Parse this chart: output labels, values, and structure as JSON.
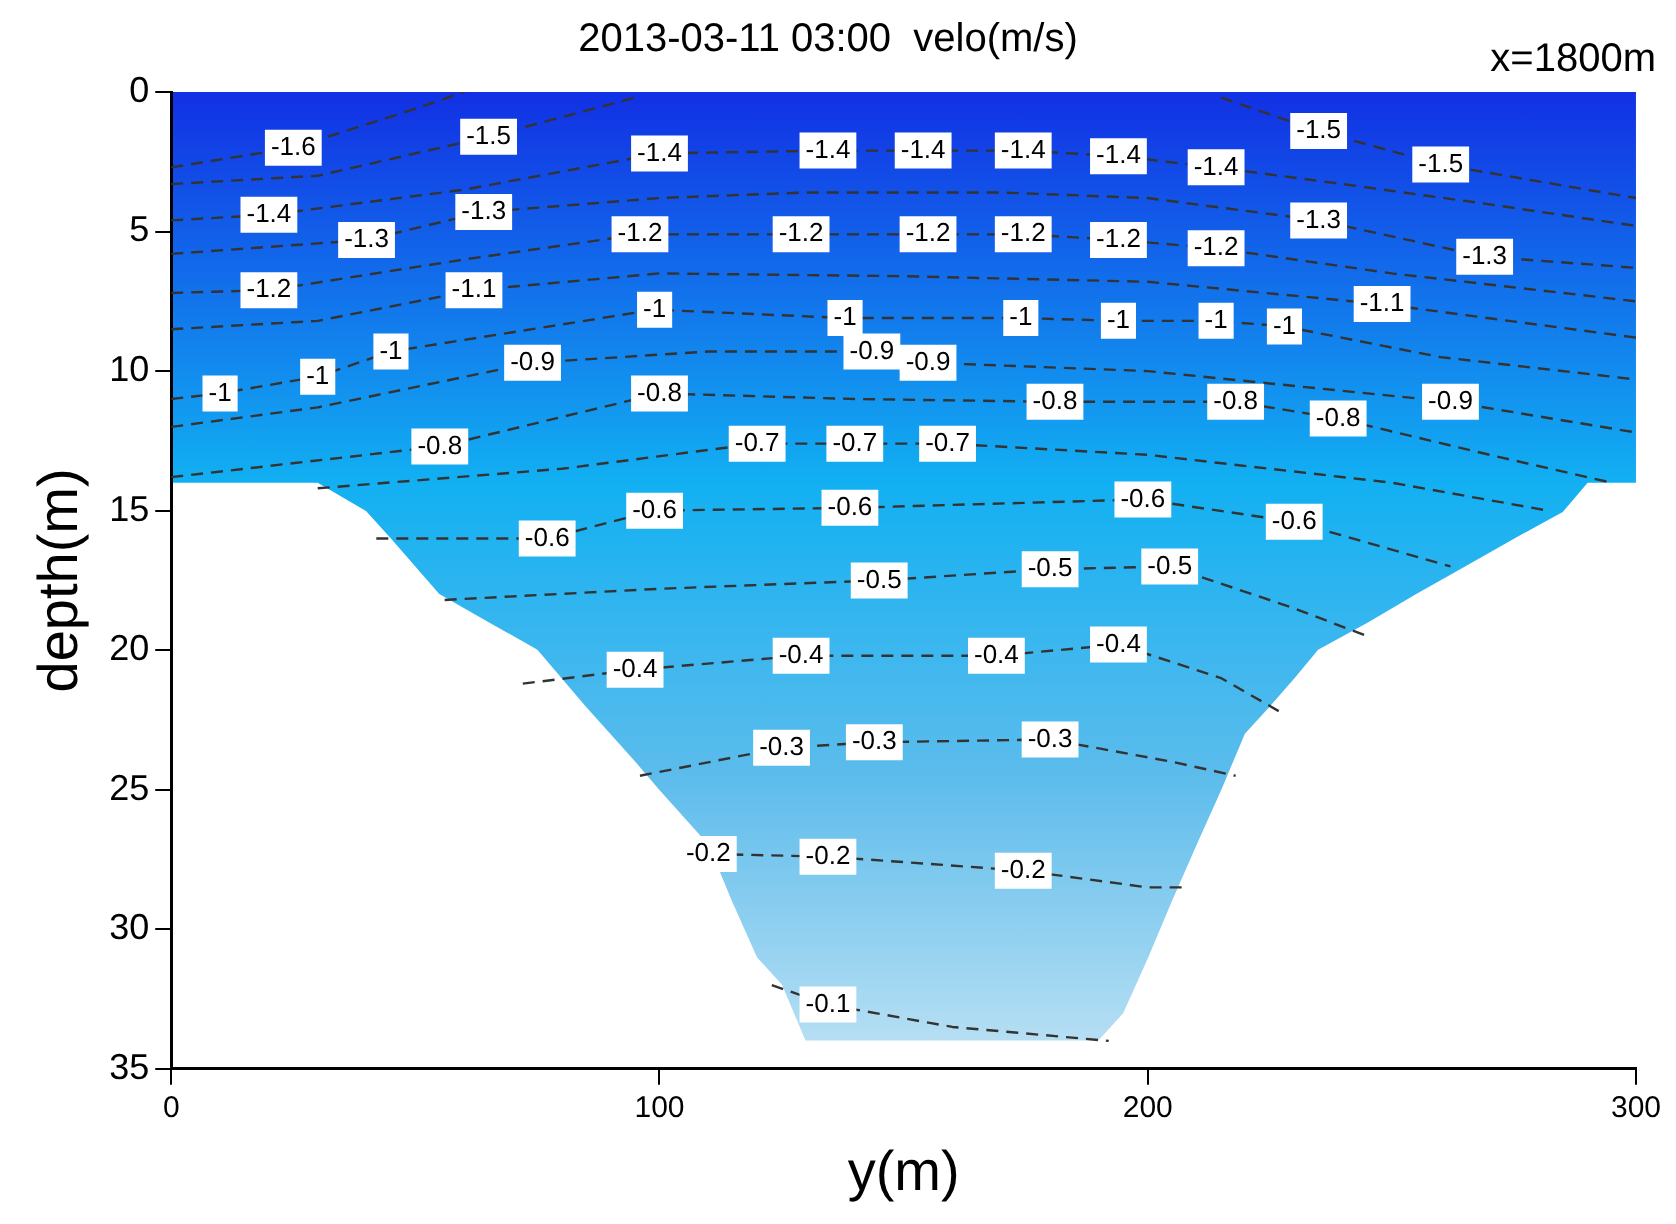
{
  "chart_data": {
    "type": "line",
    "title": "2013-03-11 03:00  velo(m/s)",
    "xlabel": "y(m)",
    "ylabel": "depth(m)",
    "xlim": [
      0,
      300
    ],
    "xticks": [
      0,
      100,
      200,
      300
    ],
    "ylim": [
      35,
      0
    ],
    "yticks": [
      0,
      5,
      10,
      15,
      20,
      25,
      30,
      35
    ],
    "legend": false,
    "line_style": "dashed",
    "series": [
      {
        "color": "#333333",
        "x": [
          0,
          25,
          50,
          60
        ],
        "values": [
          2.7,
          2.0,
          0.6,
          0
        ]
      },
      {
        "color": "#333333",
        "x": [
          0,
          30,
          65,
          95,
          155,
          215,
          235,
          260,
          290,
          300
        ],
        "values": [
          3.3,
          3.0,
          1.6,
          0.2,
          null,
          0.2,
          1.4,
          2.6,
          3.5,
          3.8
        ]
      },
      {
        "color": "#333333",
        "x": [
          0,
          20,
          60,
          100,
          134.5,
          154,
          174.5,
          194,
          214,
          240,
          269,
          300
        ],
        "values": [
          4.6,
          4.4,
          3.5,
          2.2,
          2.1,
          2.1,
          2.1,
          2.3,
          2.7,
          3.3,
          4.0,
          4.8
        ]
      },
      {
        "color": "#333333",
        "x": [
          0,
          40,
          64,
          100,
          130,
          170,
          200,
          235,
          269,
          300
        ],
        "values": [
          5.8,
          5.3,
          4.3,
          3.8,
          3.6,
          3.6,
          3.8,
          4.6,
          5.9,
          6.3
        ]
      },
      {
        "color": "#333333",
        "x": [
          0,
          20,
          60,
          96,
          129,
          155,
          174.5,
          194,
          214,
          250,
          300
        ],
        "values": [
          7.2,
          7.1,
          6.0,
          5.1,
          5.1,
          5.1,
          5.1,
          5.3,
          5.6,
          6.5,
          7.5
        ]
      },
      {
        "color": "#333333",
        "x": [
          0,
          30,
          62,
          100,
          150,
          200,
          248,
          300
        ],
        "values": [
          8.5,
          8.2,
          7.1,
          6.5,
          6.6,
          6.8,
          7.6,
          8.8
        ]
      },
      {
        "color": "#333333",
        "x": [
          0,
          10,
          30,
          45,
          99,
          138,
          174,
          194,
          214,
          228,
          260,
          300
        ],
        "values": [
          11.0,
          10.8,
          10.2,
          9.3,
          7.8,
          8.1,
          8.1,
          8.2,
          8.2,
          8.4,
          9.5,
          10.3
        ]
      },
      {
        "color": "#333333",
        "x": [
          0,
          30,
          74,
          110,
          143.5,
          155,
          200,
          262,
          300
        ],
        "values": [
          12.0,
          11.3,
          9.7,
          9.3,
          9.3,
          9.7,
          10.0,
          11.1,
          12.2
        ]
      },
      {
        "color": "#333333",
        "x": [
          0,
          55,
          100,
          140,
          181,
          218,
          239,
          270,
          295
        ],
        "values": [
          13.8,
          12.7,
          10.8,
          11.0,
          11.1,
          11.1,
          11.7,
          13.0,
          14.0
        ]
      },
      {
        "color": "#333333",
        "x": [
          30,
          80,
          120,
          140,
          159,
          200,
          250,
          282
        ],
        "values": [
          14.2,
          13.5,
          12.6,
          12.6,
          12.6,
          13.0,
          14.0,
          15.0
        ]
      },
      {
        "color": "#333333",
        "x": [
          42,
          77,
          99,
          139,
          199,
          230,
          262
        ],
        "values": [
          16.0,
          16.0,
          15.0,
          14.9,
          14.6,
          15.4,
          17.0
        ]
      },
      {
        "color": "#333333",
        "x": [
          56,
          100,
          145,
          180,
          204.5,
          230,
          245
        ],
        "values": [
          18.2,
          17.8,
          17.5,
          17.1,
          17.0,
          18.5,
          19.5
        ]
      },
      {
        "color": "#333333",
        "x": [
          72,
          95,
          129,
          169,
          194,
          215,
          227
        ],
        "values": [
          21.2,
          20.7,
          20.2,
          20.2,
          19.8,
          21.0,
          22.2
        ]
      },
      {
        "color": "#333333",
        "x": [
          96,
          125,
          144,
          180,
          205,
          218
        ],
        "values": [
          24.5,
          23.5,
          23.3,
          23.2,
          24.0,
          24.5
        ]
      },
      {
        "color": "#333333",
        "x": [
          108,
          110,
          134.5,
          174.5,
          200,
          207
        ],
        "values": [
          27.8,
          27.3,
          27.4,
          27.9,
          28.5,
          28.5
        ]
      },
      {
        "color": "#333333",
        "x": [
          123,
          134.5,
          160,
          192
        ],
        "values": [
          32.0,
          32.7,
          33.5,
          34.0
        ]
      }
    ],
    "annotations": [
      "x=1800m",
      {
        "text": "-1.6",
        "x": 25,
        "y": 2.0
      },
      {
        "text": "-1.5",
        "x": 65,
        "y": 1.6
      },
      {
        "text": "-1.4",
        "x": 100,
        "y": 2.2
      },
      {
        "text": "-1.4",
        "x": 134.5,
        "y": 2.1
      },
      {
        "text": "-1.4",
        "x": 154,
        "y": 2.1
      },
      {
        "text": "-1.4",
        "x": 174.5,
        "y": 2.1
      },
      {
        "text": "-1.4",
        "x": 194,
        "y": 2.3
      },
      {
        "text": "-1.4",
        "x": 214,
        "y": 2.7
      },
      {
        "text": "-1.5",
        "x": 235,
        "y": 1.4
      },
      {
        "text": "-1.5",
        "x": 260,
        "y": 2.6
      },
      {
        "text": "-1.4",
        "x": 20,
        "y": 4.4
      },
      {
        "text": "-1.3",
        "x": 40,
        "y": 5.3
      },
      {
        "text": "-1.3",
        "x": 64,
        "y": 4.3
      },
      {
        "text": "-1.2",
        "x": 96,
        "y": 5.1
      },
      {
        "text": "-1.2",
        "x": 129,
        "y": 5.1
      },
      {
        "text": "-1.2",
        "x": 155,
        "y": 5.1
      },
      {
        "text": "-1.2",
        "x": 174.5,
        "y": 5.1
      },
      {
        "text": "-1.2",
        "x": 194,
        "y": 5.3
      },
      {
        "text": "-1.2",
        "x": 214,
        "y": 5.6
      },
      {
        "text": "-1.3",
        "x": 235,
        "y": 4.6
      },
      {
        "text": "-1.3",
        "x": 269,
        "y": 5.9
      },
      {
        "text": "-1.2",
        "x": 20,
        "y": 7.1
      },
      {
        "text": "-1.1",
        "x": 62,
        "y": 7.1
      },
      {
        "text": "-1",
        "x": 99,
        "y": 7.8
      },
      {
        "text": "-1",
        "x": 138,
        "y": 8.1
      },
      {
        "text": "-1",
        "x": 174,
        "y": 8.1
      },
      {
        "text": "-1",
        "x": 194,
        "y": 8.2
      },
      {
        "text": "-1",
        "x": 214,
        "y": 8.2
      },
      {
        "text": "-1",
        "x": 228,
        "y": 8.4
      },
      {
        "text": "-1.1",
        "x": 248,
        "y": 7.6
      },
      {
        "text": "-1",
        "x": 10,
        "y": 10.8
      },
      {
        "text": "-1",
        "x": 30,
        "y": 10.2
      },
      {
        "text": "-1",
        "x": 45,
        "y": 9.3
      },
      {
        "text": "-0.9",
        "x": 74,
        "y": 9.7
      },
      {
        "text": "-0.8",
        "x": 100,
        "y": 10.8
      },
      {
        "text": "-0.9",
        "x": 143.5,
        "y": 9.3
      },
      {
        "text": "-0.9",
        "x": 155,
        "y": 9.7
      },
      {
        "text": "-0.8",
        "x": 181,
        "y": 11.1
      },
      {
        "text": "-0.8",
        "x": 218,
        "y": 11.1
      },
      {
        "text": "-0.8",
        "x": 239,
        "y": 11.7
      },
      {
        "text": "-0.9",
        "x": 262,
        "y": 11.1
      },
      {
        "text": "-0.8",
        "x": 55,
        "y": 12.7
      },
      {
        "text": "-0.7",
        "x": 120,
        "y": 12.6
      },
      {
        "text": "-0.7",
        "x": 140,
        "y": 12.6
      },
      {
        "text": "-0.7",
        "x": 159,
        "y": 12.6
      },
      {
        "text": "-0.6",
        "x": 77,
        "y": 16.0
      },
      {
        "text": "-0.6",
        "x": 99,
        "y": 15.0
      },
      {
        "text": "-0.6",
        "x": 139,
        "y": 14.9
      },
      {
        "text": "-0.6",
        "x": 199,
        "y": 14.6
      },
      {
        "text": "-0.6",
        "x": 230,
        "y": 15.4
      },
      {
        "text": "-0.5",
        "x": 145,
        "y": 17.5
      },
      {
        "text": "-0.5",
        "x": 180,
        "y": 17.1
      },
      {
        "text": "-0.5",
        "x": 204.5,
        "y": 17.0
      },
      {
        "text": "-0.4",
        "x": 95,
        "y": 20.7
      },
      {
        "text": "-0.4",
        "x": 129,
        "y": 20.2
      },
      {
        "text": "-0.4",
        "x": 169,
        "y": 20.2
      },
      {
        "text": "-0.4",
        "x": 194,
        "y": 19.8
      },
      {
        "text": "-0.3",
        "x": 125,
        "y": 23.5
      },
      {
        "text": "-0.3",
        "x": 144,
        "y": 23.3
      },
      {
        "text": "-0.3",
        "x": 180,
        "y": 23.2
      },
      {
        "text": "-0.2",
        "x": 110,
        "y": 27.3
      },
      {
        "text": "-0.2",
        "x": 134.5,
        "y": 27.4
      },
      {
        "text": "-0.2",
        "x": 174.5,
        "y": 27.9
      },
      {
        "text": "-0.1",
        "x": 134.5,
        "y": 32.7
      }
    ]
  }
}
